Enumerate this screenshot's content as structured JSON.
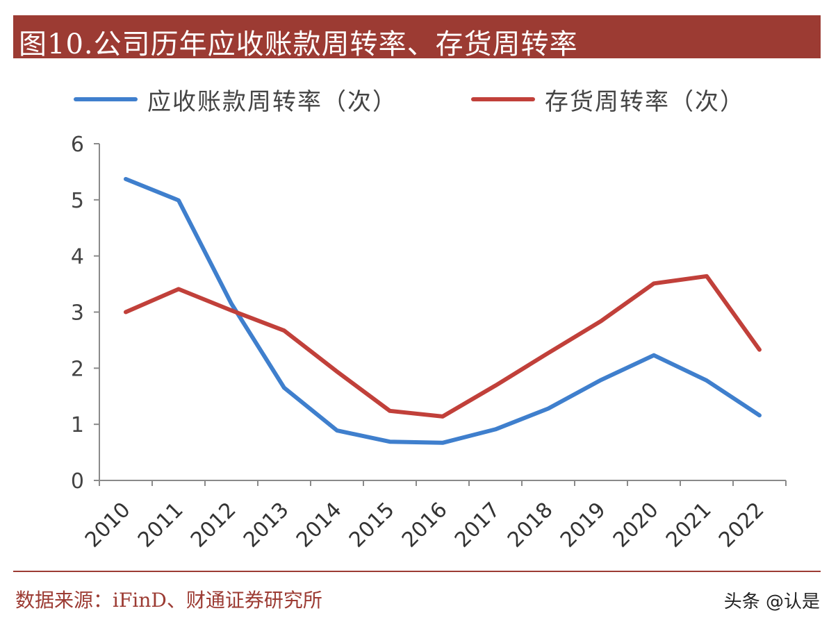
{
  "title": "图10.公司历年应收账款周转率、存货周转率",
  "source": "数据来源：iFinD、财通证券研究所",
  "watermark": "头条 @认是",
  "chart_data": {
    "type": "line",
    "x": [
      "2010",
      "2011",
      "2012",
      "2013",
      "2014",
      "2015",
      "2016",
      "2017",
      "2018",
      "2019",
      "2020",
      "2021",
      "2022"
    ],
    "series": [
      {
        "name": "应收账款周转率（次）",
        "color": "#3f7fcd",
        "values": [
          5.37,
          4.99,
          3.15,
          1.65,
          0.89,
          0.69,
          0.67,
          0.91,
          1.28,
          1.79,
          2.23,
          1.78,
          1.16
        ]
      },
      {
        "name": "存货周转率（次）",
        "color": "#c1403a",
        "values": [
          3.0,
          3.41,
          3.03,
          2.67,
          1.94,
          1.24,
          1.14,
          1.69,
          2.27,
          2.84,
          3.51,
          3.64,
          2.33
        ]
      }
    ],
    "ylim": [
      0,
      6
    ],
    "yticks": [
      "0",
      "1",
      "2",
      "3",
      "4",
      "5",
      "6"
    ],
    "legend_position": "top",
    "grid": false
  }
}
